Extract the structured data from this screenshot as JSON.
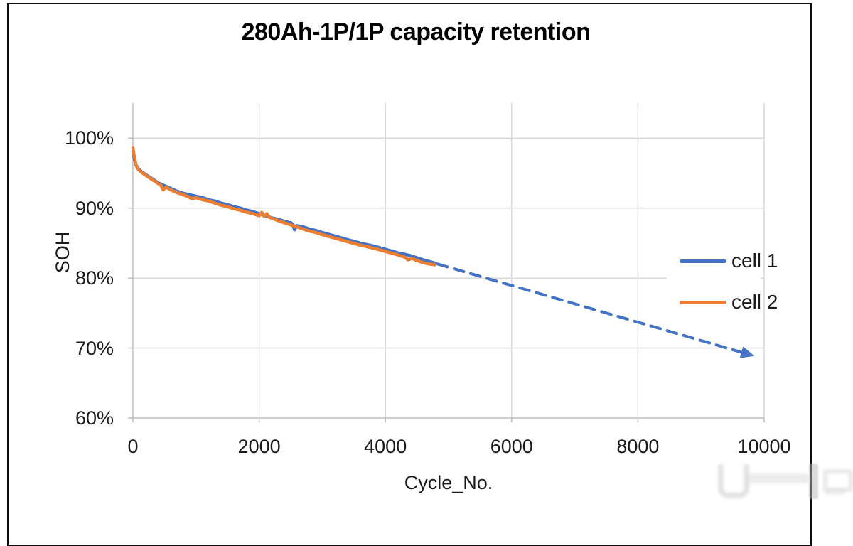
{
  "colors": {
    "cell1": "#4472C4",
    "cell2": "#ED7D31",
    "projection": "#4472C4",
    "gridline": "#D9D9D9",
    "axis": "#BFBFBF",
    "text": "#1a1a1a",
    "frame_border": "#0a0a0a"
  },
  "chart_data": {
    "type": "line",
    "title": "280Ah-1P/1P capacity retention",
    "xlabel": "Cycle_No.",
    "ylabel": "SOH",
    "xlim": [
      0,
      10000
    ],
    "ylim": [
      60,
      105
    ],
    "grid": true,
    "legend_position": "inside-right",
    "x_ticks": [
      0,
      2000,
      4000,
      6000,
      8000,
      10000
    ],
    "x_tick_labels": [
      "0",
      "2000",
      "4000",
      "6000",
      "8000",
      "10000"
    ],
    "y_ticks": [
      100,
      90,
      80,
      70,
      60
    ],
    "y_tick_labels": [
      "100%",
      "90%",
      "80%",
      "70%",
      "60%"
    ],
    "series": [
      {
        "name": "cell 1",
        "color": "#4472C4",
        "style": "solid",
        "points": [
          [
            0,
            98.1
          ],
          [
            10,
            97.6
          ],
          [
            25,
            96.9
          ],
          [
            45,
            96.2
          ],
          [
            70,
            95.8
          ],
          [
            100,
            95.5
          ],
          [
            150,
            95.1
          ],
          [
            200,
            94.8
          ],
          [
            250,
            94.5
          ],
          [
            300,
            94.2
          ],
          [
            350,
            93.9
          ],
          [
            400,
            93.6
          ],
          [
            450,
            93.4
          ],
          [
            500,
            93.2
          ],
          [
            600,
            92.8
          ],
          [
            700,
            92.4
          ],
          [
            800,
            92.1
          ],
          [
            900,
            91.9
          ],
          [
            1000,
            91.7
          ],
          [
            1100,
            91.5
          ],
          [
            1200,
            91.2
          ],
          [
            1300,
            91.0
          ],
          [
            1400,
            90.7
          ],
          [
            1500,
            90.5
          ],
          [
            1600,
            90.2
          ],
          [
            1700,
            90.0
          ],
          [
            1800,
            89.7
          ],
          [
            1900,
            89.5
          ],
          [
            2000,
            89.2
          ],
          [
            2100,
            88.9
          ],
          [
            2200,
            88.6
          ],
          [
            2300,
            88.4
          ],
          [
            2400,
            88.1
          ],
          [
            2500,
            87.9
          ],
          [
            2530,
            87.7
          ],
          [
            2560,
            86.9
          ],
          [
            2590,
            87.5
          ],
          [
            2700,
            87.3
          ],
          [
            2800,
            87.0
          ],
          [
            2900,
            86.8
          ],
          [
            3000,
            86.5
          ],
          [
            3200,
            86.0
          ],
          [
            3400,
            85.5
          ],
          [
            3600,
            85.0
          ],
          [
            3800,
            84.6
          ],
          [
            4000,
            84.1
          ],
          [
            4200,
            83.6
          ],
          [
            4400,
            83.2
          ],
          [
            4600,
            82.6
          ],
          [
            4800,
            82.1
          ]
        ]
      },
      {
        "name": "cell 2",
        "color": "#ED7D31",
        "style": "solid",
        "points": [
          [
            0,
            98.6
          ],
          [
            10,
            98.0
          ],
          [
            25,
            97.2
          ],
          [
            45,
            96.3
          ],
          [
            70,
            95.7
          ],
          [
            100,
            95.4
          ],
          [
            150,
            95.0
          ],
          [
            200,
            94.7
          ],
          [
            250,
            94.4
          ],
          [
            300,
            94.1
          ],
          [
            350,
            93.8
          ],
          [
            400,
            93.5
          ],
          [
            440,
            93.3
          ],
          [
            480,
            92.6
          ],
          [
            520,
            93.0
          ],
          [
            600,
            92.6
          ],
          [
            700,
            92.2
          ],
          [
            800,
            91.9
          ],
          [
            880,
            91.6
          ],
          [
            940,
            91.3
          ],
          [
            990,
            91.5
          ],
          [
            1100,
            91.2
          ],
          [
            1200,
            91.0
          ],
          [
            1300,
            90.7
          ],
          [
            1400,
            90.4
          ],
          [
            1500,
            90.2
          ],
          [
            1600,
            89.9
          ],
          [
            1700,
            89.7
          ],
          [
            1800,
            89.4
          ],
          [
            1900,
            89.2
          ],
          [
            2000,
            88.9
          ],
          [
            2040,
            89.4
          ],
          [
            2080,
            88.8
          ],
          [
            2120,
            89.2
          ],
          [
            2160,
            88.7
          ],
          [
            2300,
            88.2
          ],
          [
            2400,
            87.9
          ],
          [
            2500,
            87.6
          ],
          [
            2600,
            87.3
          ],
          [
            2700,
            87.0
          ],
          [
            2800,
            86.7
          ],
          [
            2900,
            86.5
          ],
          [
            3000,
            86.2
          ],
          [
            3200,
            85.7
          ],
          [
            3400,
            85.2
          ],
          [
            3600,
            84.7
          ],
          [
            3800,
            84.3
          ],
          [
            4000,
            83.8
          ],
          [
            4200,
            83.3
          ],
          [
            4300,
            83.0
          ],
          [
            4360,
            82.6
          ],
          [
            4420,
            82.8
          ],
          [
            4500,
            82.5
          ],
          [
            4600,
            82.2
          ],
          [
            4700,
            82.0
          ],
          [
            4780,
            81.9
          ]
        ]
      },
      {
        "name": "projection",
        "color": "#4472C4",
        "style": "dashed-arrow",
        "in_legend": false,
        "points": [
          [
            4830,
            82.0
          ],
          [
            9640,
            69.4
          ]
        ]
      }
    ],
    "annotations": [
      "dashed arrow extrapolates SOH decline to ~69% near 10000 cycles"
    ]
  },
  "legend": {
    "items": [
      {
        "label": "cell 1",
        "color": "#4472C4"
      },
      {
        "label": "cell 2",
        "color": "#ED7D31"
      }
    ]
  },
  "watermark": {
    "note": "faint light-gray logo watermark, bottom right"
  }
}
